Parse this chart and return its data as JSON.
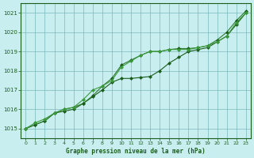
{
  "title": "Graphe pression niveau de la mer (hPa)",
  "xlabel": "Graphe pression niveau de la mer (hPa)",
  "ylim": [
    1014.5,
    1021.5
  ],
  "xlim": [
    -0.5,
    23.5
  ],
  "yticks": [
    1015,
    1016,
    1017,
    1018,
    1019,
    1020,
    1021
  ],
  "xticks": [
    0,
    1,
    2,
    3,
    4,
    5,
    6,
    7,
    8,
    9,
    10,
    11,
    12,
    13,
    14,
    15,
    16,
    17,
    18,
    19,
    20,
    21,
    22,
    23
  ],
  "bg_color": "#c8eef0",
  "grid_color": "#7db8ba",
  "line_color": "#1a5c1a",
  "line_color2": "#2d7a2d",
  "line_color3": "#3a9a3a",
  "series1": [
    1015.0,
    1015.3,
    1015.5,
    1015.8,
    1016.0,
    1016.1,
    1016.5,
    1017.0,
    1017.2,
    1017.5,
    1018.2,
    1018.5,
    1018.8,
    1019.0,
    1019.0,
    1019.1,
    1019.1,
    1019.1,
    1019.2,
    1019.3,
    1019.5,
    1019.8,
    1020.5,
    1021.0
  ],
  "series2": [
    1015.0,
    1015.2,
    1015.4,
    1015.8,
    1016.0,
    1016.1,
    1016.3,
    1016.7,
    1017.2,
    1017.6,
    1018.3,
    1018.55,
    1018.8,
    1019.0,
    1019.0,
    1019.1,
    1019.15,
    1019.15,
    1019.2,
    1019.3,
    1019.6,
    1020.0,
    1020.6,
    1021.1
  ],
  "series3": [
    1015.0,
    1015.2,
    1015.4,
    1015.8,
    1015.9,
    1016.0,
    1016.3,
    1016.65,
    1017.0,
    1017.4,
    1017.6,
    1017.6,
    1017.65,
    1017.7,
    1018.0,
    1018.4,
    1018.7,
    1019.0,
    1019.1,
    1019.2,
    1019.5,
    1019.8,
    1020.4,
    1021.0
  ]
}
